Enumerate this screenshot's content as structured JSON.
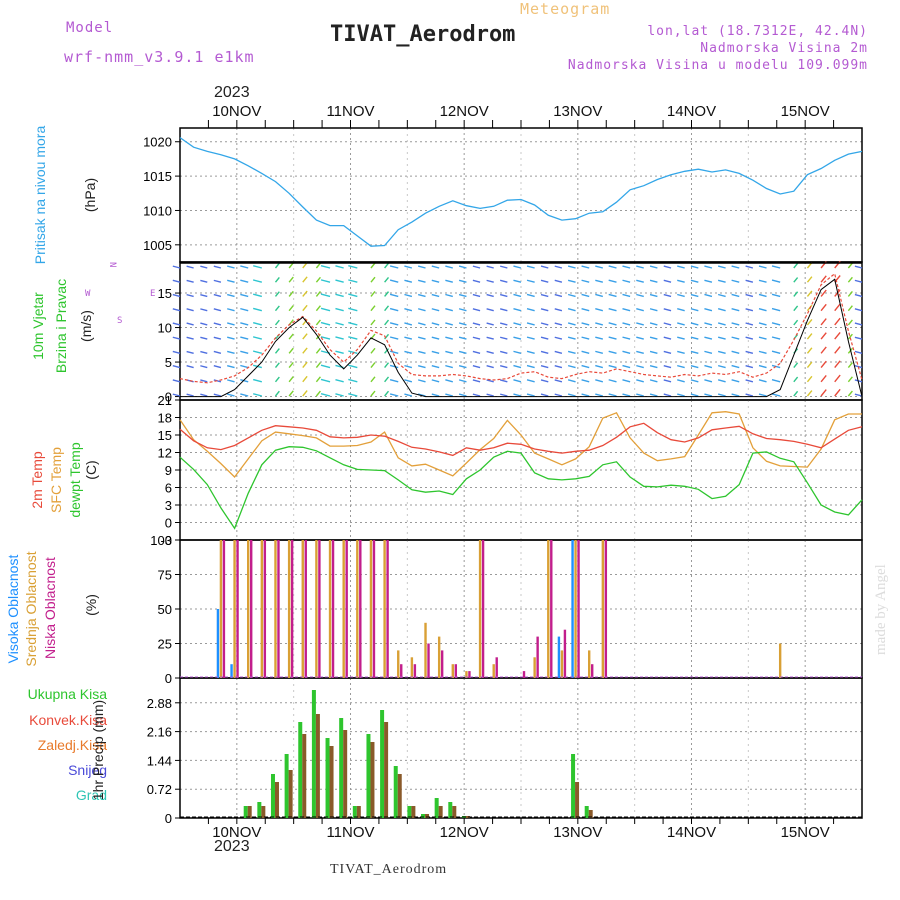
{
  "header": {
    "model_label": "Model",
    "model_name": "wrf-nmm_v3.9.1 e1km",
    "product": "Meteogram",
    "station": "TIVAT_Aerodrom",
    "lonlat": "lon,lat (18.7312E, 42.4N)",
    "elevation": "Nadmorska Visina 2m",
    "model_elevation": "Nadmorska Visina u modelu 109.099m",
    "footer_station": "TIVAT_Aerodrom",
    "credit": "made by Angel",
    "year": "2023"
  },
  "colors": {
    "pressure": "#33a6e8",
    "temp2m": "#e84a3a",
    "sfctemp": "#e3a03a",
    "dewpt": "#2ec52e",
    "cloud_high": "#1e90ff",
    "cloud_mid": "#d9a035",
    "cloud_low": "#c21e8c",
    "precip_total": "#2ec52e",
    "precip_conv": "#c93a3a",
    "snow": "#4a4ad8",
    "grad": "#2ec5b5",
    "zaledj": "#e87a2a"
  },
  "panels": {
    "pressure": {
      "label1": "Pritisak na nivou mora",
      "label2": "(hPa)"
    },
    "wind": {
      "label1": "10m Vjetar",
      "label2": "Brzina i Pravac",
      "label3": "(m/s)",
      "compass": {
        "n": "N",
        "w": "W",
        "e": "E",
        "s": "S"
      }
    },
    "temp": {
      "label_a": "2m Temp",
      "label_b": "SFC Temp",
      "label_c": "dewpt Temp",
      "unit": "(C)"
    },
    "cloud": {
      "label_a": "Visoka Oblacnost",
      "label_b": "Srednja Oblacnost",
      "label_c": "Niska Oblacnost",
      "unit": "(%)"
    },
    "precip": {
      "legend": [
        "Ukupna Kisa",
        "Konvek.Kisa",
        "Zaledj.Kisa",
        "Snijeg",
        "Grad"
      ],
      "unit": "1hr Precip (mm)"
    }
  },
  "chart_data": [
    {
      "type": "line",
      "title": "TIVAT_Aerodrom",
      "ylabel": "Pritisak na nivou mora (hPa)",
      "x_ticks": [
        "10NOV",
        "11NOV",
        "12NOV",
        "13NOV",
        "14NOV",
        "15NOV"
      ],
      "x_range_days": [
        -0.5,
        5.5
      ],
      "ylim": [
        1002.5,
        1022
      ],
      "yticks": [
        1005,
        1010,
        1015,
        1020
      ],
      "series": [
        {
          "values": [
            1020.6,
            1019.2,
            1018.6,
            1018.1,
            1017.5,
            1016.5,
            1015.4,
            1014.2,
            1012.5,
            1010.5,
            1008.6,
            1007.8,
            1007.8,
            1006.3,
            1004.8,
            1004.9,
            1007.2,
            1008.3,
            1009.6,
            1010.6,
            1011.4,
            1010.7,
            1010.3,
            1010.6,
            1011.5,
            1011.6,
            1010.8,
            1009.3,
            1008.6,
            1008.8,
            1009.6,
            1009.8,
            1011.2,
            1013.0,
            1013.6,
            1014.5,
            1015.2,
            1015.7,
            1016.0,
            1015.6,
            1015.9,
            1015.4,
            1014.4,
            1013.2,
            1012.4,
            1012.8,
            1015.2,
            1016.1,
            1017.3,
            1018.2,
            1018.6
          ]
        }
      ]
    },
    {
      "type": "line",
      "ylabel": "10m Vjetar Brzina i Pravac (m/s)",
      "ylim": [
        -0.5,
        19.5
      ],
      "yticks": [
        0,
        5,
        10,
        15
      ],
      "series": [
        {
          "values": [
            2.6,
            2.2,
            2.0,
            2.4,
            3.0,
            4.2,
            6.0,
            8.5,
            10.4,
            11.6,
            9.5,
            6.8,
            5.0,
            6.8,
            9.6,
            8.8,
            4.8,
            3.2,
            3.0,
            3.0,
            3.2,
            3.0,
            2.6,
            2.4,
            2.6,
            3.4,
            3.6,
            2.8,
            2.6,
            3.2,
            3.6,
            3.4,
            4.0,
            3.6,
            3.2,
            3.0,
            2.8,
            3.2,
            3.0,
            3.4,
            3.2,
            3.6,
            2.8,
            3.4,
            4.8,
            8.2,
            12.0,
            16.2,
            17.8,
            9.5,
            2.4
          ]
        },
        {
          "values": [
            0.0,
            0.0,
            0.0,
            0.0,
            1.0,
            3.0,
            5.0,
            8.0,
            10.0,
            11.5,
            9.0,
            6.0,
            4.0,
            6.0,
            8.5,
            7.5,
            3.5,
            0.5,
            0.0,
            0.0,
            0.0,
            0.0,
            0.0,
            0.0,
            0.0,
            0.0,
            0.0,
            0.0,
            0.0,
            0.0,
            0.0,
            0.0,
            0.0,
            0.0,
            0.0,
            0.0,
            0.0,
            0.0,
            0.0,
            0.0,
            0.0,
            0.0,
            0.0,
            0.0,
            1.0,
            6.0,
            11.0,
            15.5,
            17.0,
            8.0,
            0.0
          ]
        }
      ]
    },
    {
      "type": "line",
      "ylabel": "Temp (C)",
      "ylim": [
        -3,
        21
      ],
      "yticks": [
        -3,
        0,
        3,
        6,
        9,
        12,
        15,
        18,
        21
      ],
      "series": [
        {
          "values": [
            16.0,
            14.0,
            12.8,
            12.5,
            13.2,
            14.5,
            15.8,
            16.6,
            16.4,
            16.2,
            15.8,
            14.7,
            14.5,
            14.6,
            15.0,
            14.8,
            13.9,
            12.9,
            12.6,
            12.1,
            11.5,
            12.8,
            12.4,
            12.8,
            13.6,
            13.4,
            12.6,
            12.2,
            11.9,
            12.2,
            12.4,
            13.2,
            14.6,
            16.4,
            17.0,
            15.4,
            14.2,
            13.8,
            14.5,
            15.9,
            16.2,
            16.5,
            15.2,
            14.4,
            14.2,
            13.9,
            13.4,
            12.8,
            14.3,
            15.8,
            16.4
          ]
        },
        {
          "values": [
            17.6,
            14.2,
            12.2,
            10.1,
            7.8,
            10.9,
            14.0,
            15.5,
            15.2,
            14.9,
            14.5,
            13.1,
            13.1,
            13.2,
            13.8,
            15.5,
            11.1,
            9.7,
            10.0,
            9.0,
            8.0,
            10.2,
            12.5,
            14.4,
            17.5,
            15.0,
            11.9,
            10.9,
            9.9,
            10.9,
            13.0,
            17.9,
            18.8,
            14.5,
            11.9,
            10.6,
            10.9,
            11.3,
            15.0,
            18.8,
            19.0,
            18.6,
            12.8,
            10.5,
            9.7,
            9.6,
            9.5,
            12.6,
            17.6,
            18.6,
            18.6
          ]
        },
        {
          "values": [
            11.2,
            9.1,
            6.5,
            2.5,
            -1.0,
            5.0,
            9.9,
            12.4,
            13.0,
            12.9,
            12.3,
            11.1,
            9.9,
            9.1,
            9.0,
            8.9,
            7.3,
            5.6,
            5.2,
            5.4,
            4.8,
            7.5,
            9.0,
            11.2,
            12.2,
            11.9,
            8.5,
            7.5,
            7.3,
            7.5,
            7.9,
            9.9,
            10.4,
            7.8,
            6.2,
            6.1,
            6.4,
            6.2,
            5.7,
            4.1,
            4.5,
            6.5,
            11.9,
            12.1,
            11.0,
            10.4,
            6.8,
            3.0,
            1.8,
            1.3,
            3.9
          ]
        }
      ]
    },
    {
      "type": "bar",
      "ylabel": "Oblacnost (%)",
      "ylim": [
        0,
        100
      ],
      "yticks": [
        0,
        25,
        50,
        75,
        100
      ],
      "series": [
        {
          "name": "Visoka Oblacnost",
          "values": [
            0,
            0,
            0,
            50,
            10,
            0,
            0,
            0,
            0,
            0,
            0,
            0,
            0,
            0,
            0,
            0,
            0,
            0,
            0,
            0,
            0,
            0,
            0,
            0,
            0,
            0,
            0,
            0,
            30,
            100,
            0,
            0,
            0,
            0,
            0,
            0,
            0,
            0,
            0,
            0,
            0,
            0,
            0,
            0,
            0,
            0,
            0,
            0,
            0,
            0,
            0
          ]
        },
        {
          "name": "Srednja Oblacnost",
          "values": [
            0,
            0,
            0,
            100,
            100,
            100,
            100,
            100,
            100,
            100,
            100,
            100,
            100,
            100,
            100,
            100,
            20,
            15,
            40,
            30,
            10,
            5,
            100,
            10,
            0,
            0,
            15,
            100,
            20,
            100,
            20,
            100,
            0,
            0,
            0,
            0,
            0,
            0,
            0,
            0,
            0,
            0,
            0,
            0,
            25,
            0,
            0,
            0,
            0,
            0,
            0
          ]
        },
        {
          "name": "Niska Oblacnost",
          "values": [
            0,
            0,
            0,
            100,
            100,
            100,
            100,
            100,
            100,
            100,
            100,
            100,
            100,
            100,
            100,
            100,
            10,
            10,
            25,
            20,
            10,
            5,
            100,
            15,
            0,
            5,
            30,
            100,
            35,
            100,
            10,
            100,
            0,
            0,
            0,
            0,
            0,
            0,
            0,
            0,
            0,
            0,
            0,
            0,
            0,
            0,
            0,
            0,
            0,
            0,
            0
          ]
        }
      ]
    },
    {
      "type": "bar",
      "ylabel": "1hr Precip (mm)",
      "ylim": [
        0,
        3.5
      ],
      "yticks": [
        0,
        0.72,
        1.44,
        2.16,
        2.88
      ],
      "series": [
        {
          "name": "Ukupna Kisa",
          "values": [
            0,
            0,
            0,
            0,
            0,
            0.3,
            0.4,
            1.1,
            1.6,
            2.4,
            3.2,
            2.0,
            2.5,
            0.3,
            2.1,
            2.7,
            1.3,
            0.3,
            0.1,
            0.5,
            0.4,
            0.05,
            0,
            0,
            0,
            0,
            0,
            0,
            0,
            1.6,
            0.3,
            0,
            0,
            0,
            0,
            0,
            0,
            0,
            0,
            0,
            0,
            0,
            0,
            0,
            0,
            0,
            0,
            0,
            0,
            0,
            0
          ]
        },
        {
          "name": "Konvek.Kisa",
          "values": [
            0,
            0,
            0,
            0,
            0,
            0.3,
            0.3,
            0.9,
            1.2,
            2.1,
            2.6,
            1.8,
            2.2,
            0.3,
            1.9,
            2.4,
            1.1,
            0.3,
            0.1,
            0.3,
            0.3,
            0.05,
            0,
            0,
            0,
            0,
            0,
            0,
            0,
            0.9,
            0.2,
            0,
            0,
            0,
            0,
            0,
            0,
            0,
            0,
            0,
            0,
            0,
            0,
            0,
            0,
            0,
            0,
            0,
            0,
            0,
            0
          ]
        }
      ]
    }
  ]
}
